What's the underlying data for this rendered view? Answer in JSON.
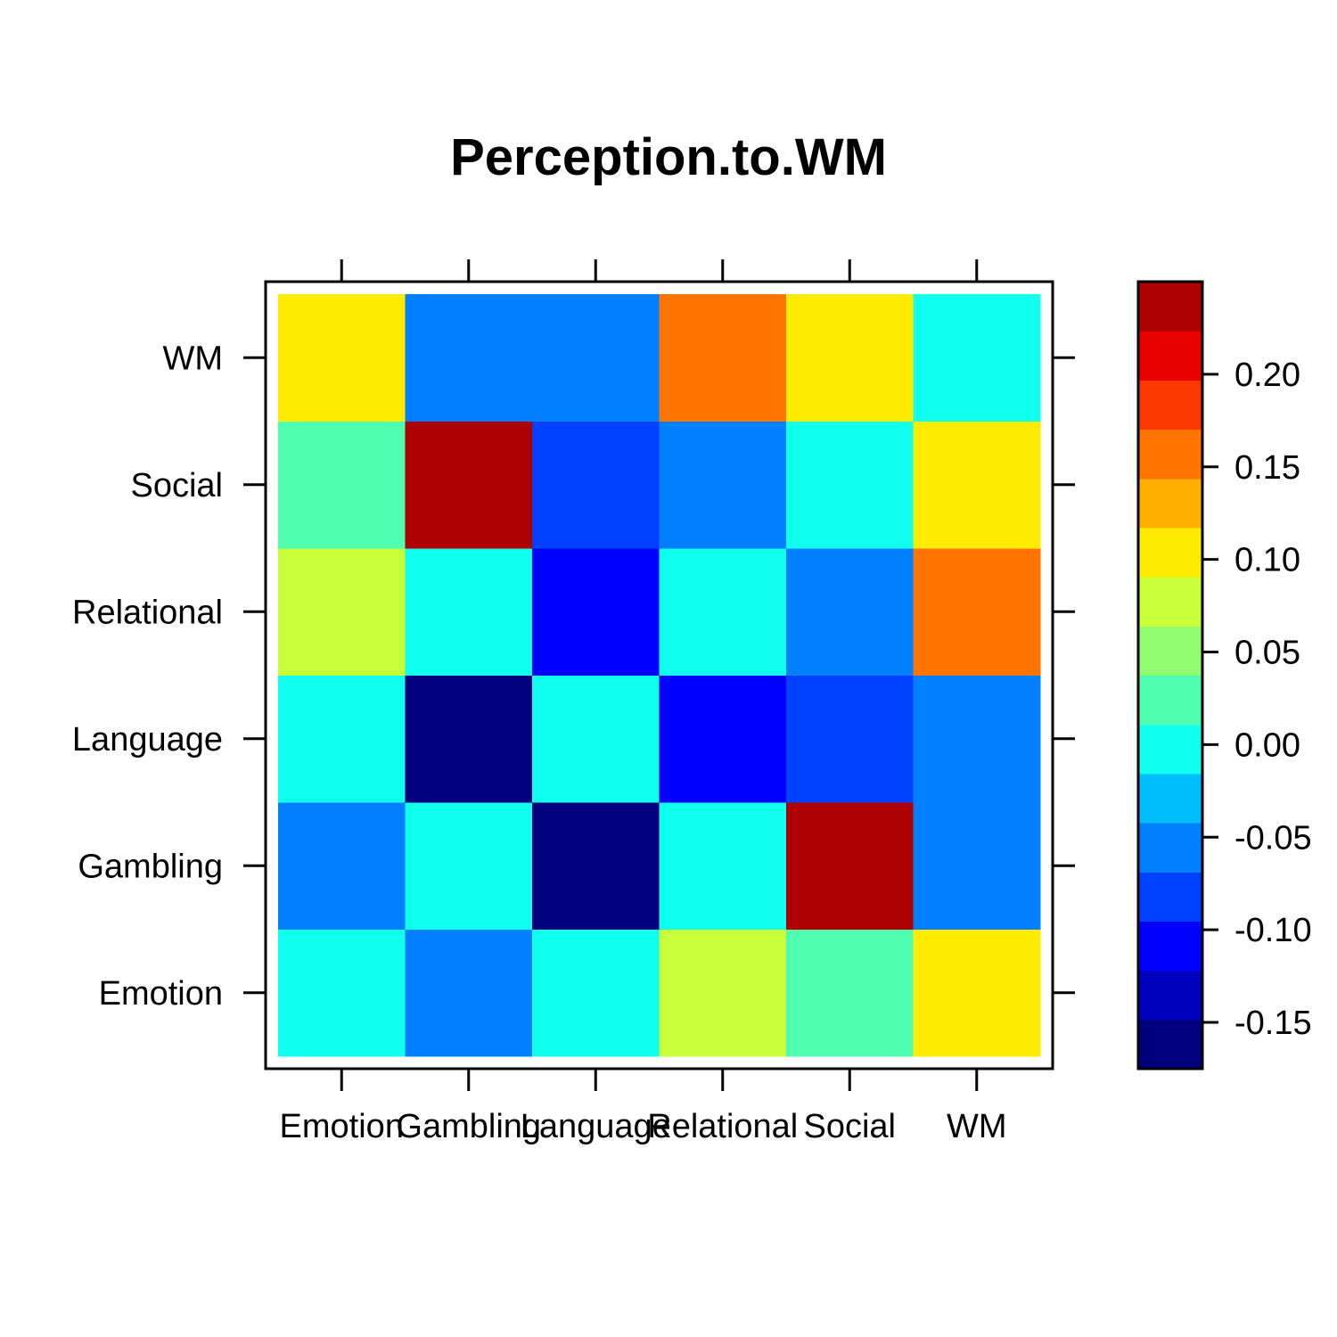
{
  "chart_data": {
    "type": "heatmap",
    "title": "Perception.to.WM",
    "xlabel": "",
    "ylabel": "",
    "x_categories": [
      "Emotion",
      "Gambling",
      "Language",
      "Relational",
      "Social",
      "WM"
    ],
    "y_categories": [
      "Emotion",
      "Gambling",
      "Language",
      "Relational",
      "Social",
      "WM"
    ],
    "values": [
      [
        0.0,
        -0.05,
        0.0,
        0.075,
        0.025,
        0.1
      ],
      [
        -0.05,
        0.0,
        -0.175,
        0.0,
        0.225,
        -0.05
      ],
      [
        0.0,
        -0.175,
        0.0,
        -0.1,
        -0.075,
        -0.05
      ],
      [
        0.075,
        0.0,
        -0.1,
        0.0,
        -0.05,
        0.15
      ],
      [
        0.025,
        0.225,
        -0.075,
        -0.05,
        0.0,
        0.1
      ],
      [
        0.1,
        -0.05,
        -0.05,
        0.15,
        0.1,
        0.0
      ]
    ],
    "colorbar": {
      "range": [
        -0.175,
        0.25
      ],
      "step": 0.025,
      "ticks": [
        -0.15,
        -0.1,
        -0.05,
        0.0,
        0.05,
        0.1,
        0.15,
        0.2
      ],
      "tick_labels": [
        "-0.15",
        "-0.10",
        "-0.05",
        "0.00",
        "0.05",
        "0.10",
        "0.15",
        "0.20"
      ],
      "colors": [
        "#00007F",
        "#0000BF",
        "#0000FF",
        "#0040FF",
        "#0080FF",
        "#00BFFF",
        "#10FFEF",
        "#4FFFAF",
        "#8FFF6F",
        "#C7FF38",
        "#FFEB00",
        "#FFAF00",
        "#FF7300",
        "#FF3700",
        "#EB0000",
        "#AF0000"
      ]
    }
  }
}
